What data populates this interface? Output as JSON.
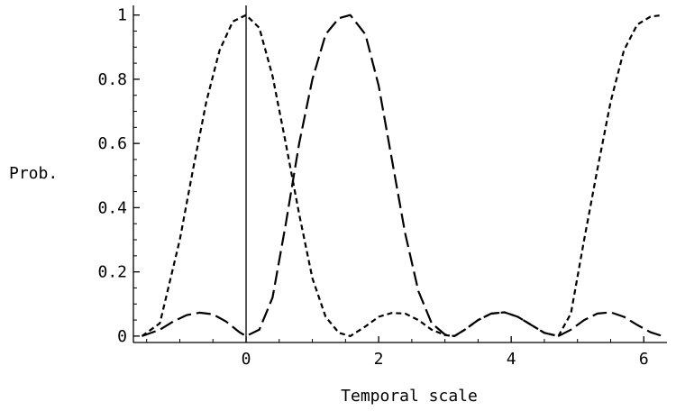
{
  "chart_data": {
    "type": "line",
    "title": "",
    "xlabel": "Temporal scale",
    "ylabel": "Prob.",
    "xlim": [
      -1.7,
      6.35
    ],
    "ylim": [
      -0.02,
      1.03
    ],
    "x_ticks": [
      0,
      2,
      4,
      6
    ],
    "x_tick_labels": [
      "0",
      "2",
      "4",
      "6"
    ],
    "y_ticks": [
      0,
      0.2,
      0.4,
      0.6,
      0.8,
      1
    ],
    "y_tick_labels": [
      "0",
      "0.2",
      "0.4",
      "0.6",
      "0.8",
      "1"
    ],
    "grid": false,
    "legend": "none",
    "series": [
      {
        "style": "short-dash",
        "x": [
          -1.571,
          -1.3,
          -1.0,
          -0.8,
          -0.6,
          -0.4,
          -0.2,
          0.0,
          0.2,
          0.4,
          0.6,
          0.8,
          1.0,
          1.2,
          1.4,
          1.571,
          1.8,
          2.0,
          2.2,
          2.4,
          2.6,
          2.8,
          3.0,
          3.142,
          3.3,
          3.5,
          3.7,
          3.9,
          4.1,
          4.3,
          4.5,
          4.712,
          4.9,
          5.1,
          5.3,
          5.5,
          5.7,
          5.9,
          6.1,
          6.283
        ],
        "y": [
          0.0,
          0.04,
          0.3,
          0.52,
          0.73,
          0.89,
          0.98,
          1.0,
          0.96,
          0.81,
          0.6,
          0.38,
          0.18,
          0.06,
          0.01,
          0.0,
          0.03,
          0.06,
          0.072,
          0.07,
          0.05,
          0.02,
          0.003,
          0.0,
          0.02,
          0.05,
          0.07,
          0.074,
          0.06,
          0.035,
          0.01,
          0.0,
          0.07,
          0.3,
          0.52,
          0.73,
          0.89,
          0.97,
          0.995,
          1.0
        ]
      },
      {
        "style": "long-dash",
        "x": [
          -1.571,
          -1.3,
          -1.1,
          -0.9,
          -0.7,
          -0.5,
          -0.3,
          -0.1,
          0.0,
          0.2,
          0.4,
          0.6,
          0.8,
          1.0,
          1.2,
          1.4,
          1.571,
          1.8,
          2.0,
          2.2,
          2.4,
          2.6,
          2.8,
          3.0,
          3.142,
          3.3,
          3.5,
          3.7,
          3.9,
          4.1,
          4.3,
          4.5,
          4.712,
          4.9,
          5.1,
          5.3,
          5.5,
          5.7,
          5.9,
          6.1,
          6.283
        ],
        "y": [
          0.0,
          0.02,
          0.045,
          0.065,
          0.073,
          0.068,
          0.045,
          0.012,
          0.0,
          0.02,
          0.12,
          0.35,
          0.6,
          0.8,
          0.94,
          0.99,
          1.0,
          0.94,
          0.78,
          0.55,
          0.32,
          0.14,
          0.04,
          0.005,
          0.0,
          0.02,
          0.05,
          0.07,
          0.074,
          0.06,
          0.035,
          0.01,
          0.0,
          0.02,
          0.05,
          0.07,
          0.074,
          0.06,
          0.035,
          0.012,
          0.0
        ]
      }
    ]
  }
}
